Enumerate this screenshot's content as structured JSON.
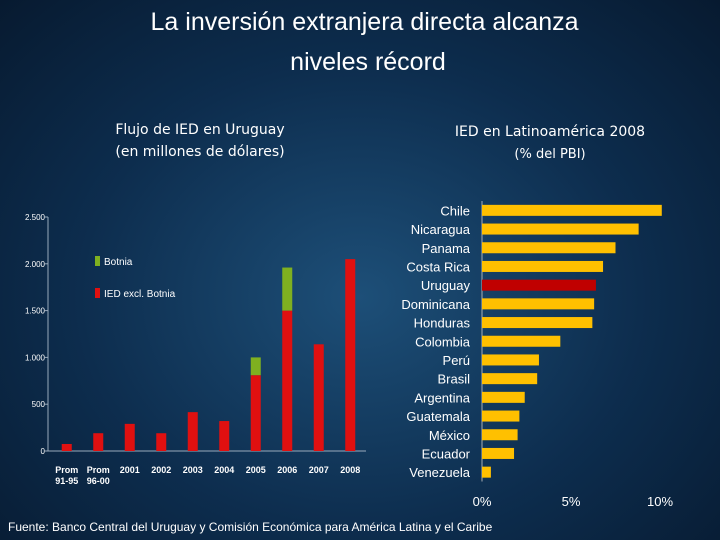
{
  "title": "La inversión extranjera directa alcanza niveles récord",
  "source": "Fuente: Banco Central del Uruguay y Comisión Económica para América Latina y el Caribe",
  "chart_data": [
    {
      "type": "bar",
      "stacked": true,
      "title": "Flujo de IED en Uruguay",
      "subtitle": "(en millones de dólares)",
      "categories": [
        "Prom 91-95",
        "Prom 96-00",
        "2001",
        "2002",
        "2003",
        "2004",
        "2005",
        "2006",
        "2007",
        "2008"
      ],
      "series": [
        {
          "name": "IED excl. Botnia",
          "color": "#e01010",
          "values": [
            75,
            190,
            290,
            190,
            415,
            320,
            810,
            1500,
            1140,
            2050
          ]
        },
        {
          "name": "Botnia",
          "color": "#7fb020",
          "values": [
            0,
            0,
            0,
            0,
            0,
            0,
            190,
            460,
            0,
            0
          ]
        }
      ],
      "ylim": [
        0,
        2500
      ],
      "yticks": [
        0,
        500,
        {
          "value": 1000,
          "label": "1.000"
        },
        {
          "value": 1500,
          "label": "1.500"
        },
        {
          "value": 2000,
          "label": "2.000"
        },
        {
          "value": 2500,
          "label": "2.500"
        }
      ],
      "legend": "upper left"
    },
    {
      "type": "hbar",
      "title": "IED en Latinoamérica 2008",
      "subtitle": "(% del PBI)",
      "categories": [
        "Chile",
        "Nicaragua",
        "Panama",
        "Costa Rica",
        "Uruguay",
        "Dominicana",
        "Honduras",
        "Colombia",
        "Perú",
        "Brasil",
        "Argentina",
        "Guatemala",
        "México",
        "Ecuador",
        "Venezuela"
      ],
      "values": [
        10.1,
        8.8,
        7.5,
        6.8,
        6.4,
        6.3,
        6.2,
        4.4,
        3.2,
        3.1,
        2.4,
        2.1,
        2.0,
        1.8,
        0.5
      ],
      "colors": [
        "#ffc000",
        "#ffc000",
        "#ffc000",
        "#ffc000",
        "#c00000",
        "#ffc000",
        "#ffc000",
        "#ffc000",
        "#ffc000",
        "#ffc000",
        "#ffc000",
        "#ffc000",
        "#ffc000",
        "#ffc000",
        "#ffc000"
      ],
      "xlim": [
        0,
        10
      ],
      "xticks": [
        {
          "value": 0,
          "label": "0%"
        },
        {
          "value": 5,
          "label": "5%"
        },
        {
          "value": 10,
          "label": "10%"
        }
      ]
    }
  ]
}
